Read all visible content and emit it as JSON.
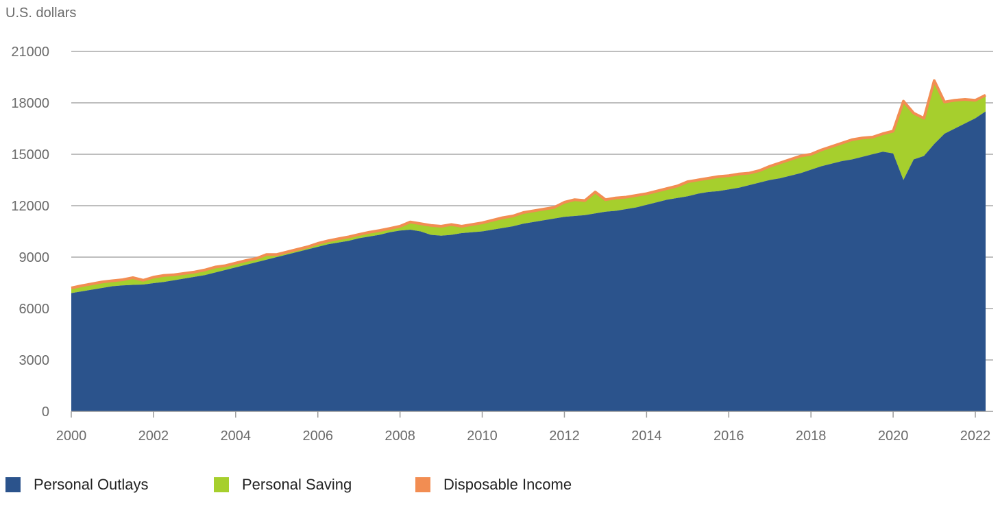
{
  "chart_data": {
    "type": "area",
    "title": "",
    "ylabel": "U.S. dollars",
    "xlabel": "",
    "ylim": [
      0,
      21000
    ],
    "xlim": [
      2000,
      2022.4
    ],
    "yticks": [
      "0",
      "3000",
      "6000",
      "9000",
      "12000",
      "15000",
      "18000",
      "21000"
    ],
    "xticks": [
      "2000",
      "2002",
      "2004",
      "2006",
      "2008",
      "2010",
      "2012",
      "2014",
      "2016",
      "2018",
      "2020",
      "2022"
    ],
    "grid": true,
    "legend_position": "bottom",
    "x": [
      2000,
      2000.25,
      2000.5,
      2000.75,
      2001,
      2001.25,
      2001.5,
      2001.75,
      2002,
      2002.25,
      2002.5,
      2002.75,
      2003,
      2003.25,
      2003.5,
      2003.75,
      2004,
      2004.25,
      2004.5,
      2004.75,
      2005,
      2005.25,
      2005.5,
      2005.75,
      2006,
      2006.25,
      2006.5,
      2006.75,
      2007,
      2007.25,
      2007.5,
      2007.75,
      2008,
      2008.25,
      2008.5,
      2008.75,
      2009,
      2009.25,
      2009.5,
      2009.75,
      2010,
      2010.25,
      2010.5,
      2010.75,
      2011,
      2011.25,
      2011.5,
      2011.75,
      2012,
      2012.25,
      2012.5,
      2012.75,
      2013,
      2013.25,
      2013.5,
      2013.75,
      2014,
      2014.25,
      2014.5,
      2014.75,
      2015,
      2015.25,
      2015.5,
      2015.75,
      2016,
      2016.25,
      2016.5,
      2016.75,
      2017,
      2017.25,
      2017.5,
      2017.75,
      2018,
      2018.25,
      2018.5,
      2018.75,
      2019,
      2019.25,
      2019.5,
      2019.75,
      2020,
      2020.25,
      2020.5,
      2020.75,
      2021,
      2021.25,
      2021.5,
      2021.75,
      2022,
      2022.25
    ],
    "series": [
      {
        "name": "Personal Outlays",
        "color": "#2b538c",
        "values": [
          6900,
          7000,
          7100,
          7200,
          7300,
          7350,
          7380,
          7400,
          7480,
          7550,
          7650,
          7750,
          7850,
          7950,
          8100,
          8250,
          8400,
          8550,
          8700,
          8850,
          9000,
          9150,
          9300,
          9450,
          9600,
          9750,
          9850,
          9950,
          10100,
          10200,
          10300,
          10450,
          10550,
          10600,
          10500,
          10300,
          10250,
          10300,
          10400,
          10450,
          10500,
          10600,
          10700,
          10800,
          10950,
          11050,
          11150,
          11250,
          11350,
          11400,
          11450,
          11550,
          11650,
          11700,
          11800,
          11900,
          12050,
          12200,
          12350,
          12450,
          12550,
          12700,
          12800,
          12850,
          12950,
          13050,
          13200,
          13350,
          13500,
          13600,
          13750,
          13900,
          14100,
          14300,
          14450,
          14600,
          14700,
          14850,
          15000,
          15150,
          15050,
          13500,
          14700,
          14900,
          15600,
          16200,
          16500,
          16800,
          17100,
          17500
        ]
      },
      {
        "name": "Personal Saving",
        "color": "#a6cf2d",
        "values": [
          300,
          330,
          340,
          350,
          320,
          330,
          420,
          250,
          350,
          380,
          320,
          300,
          280,
          300,
          320,
          250,
          250,
          250,
          220,
          300,
          150,
          150,
          150,
          150,
          200,
          200,
          220,
          230,
          220,
          250,
          250,
          220,
          250,
          450,
          450,
          550,
          550,
          600,
          400,
          450,
          500,
          550,
          600,
          600,
          650,
          650,
          650,
          650,
          850,
          950,
          850,
          1250,
          700,
          750,
          700,
          700,
          650,
          650,
          650,
          700,
          850,
          800,
          800,
          850,
          800,
          800,
          700,
          700,
          800,
          900,
          950,
          1000,
          900,
          950,
          1000,
          1050,
          1150,
          1100,
          1000,
          1050,
          1300,
          4600,
          2700,
          2200,
          3700,
          1850,
          1650,
          1400,
          1050,
          950
        ]
      },
      {
        "name": "Disposable Income",
        "color": "#f28d52",
        "values": [
          7200,
          7330,
          7440,
          7550,
          7620,
          7680,
          7800,
          7650,
          7830,
          7930,
          7970,
          8050,
          8130,
          8250,
          8420,
          8500,
          8650,
          8800,
          8920,
          9150,
          9150,
          9300,
          9450,
          9600,
          9800,
          9950,
          10070,
          10180,
          10320,
          10450,
          10550,
          10670,
          10800,
          11050,
          10950,
          10850,
          10800,
          10900,
          10800,
          10900,
          11000,
          11150,
          11300,
          11400,
          11600,
          11700,
          11800,
          11900,
          12200,
          12350,
          12300,
          12800,
          12350,
          12450,
          12500,
          12600,
          12700,
          12850,
          13000,
          13150,
          13400,
          13500,
          13600,
          13700,
          13750,
          13850,
          13900,
          14050,
          14300,
          14500,
          14700,
          14900,
          15000,
          15250,
          15450,
          15650,
          15850,
          15950,
          16000,
          16200,
          16350,
          18100,
          17400,
          17100,
          19300,
          18050,
          18150,
          18200,
          18150,
          18450
        ]
      }
    ]
  }
}
